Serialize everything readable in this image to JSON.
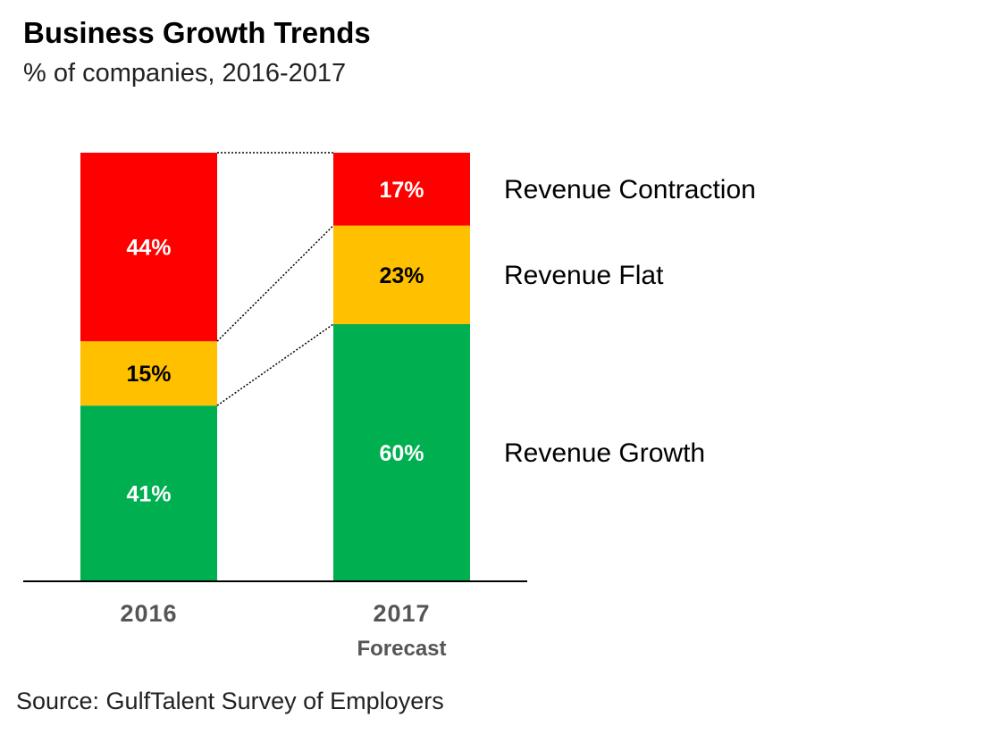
{
  "chart_data": {
    "type": "bar",
    "stacked": true,
    "title": "Business Growth Trends",
    "subtitle": "% of companies, 2016-2017",
    "categories": [
      "2016",
      "2017"
    ],
    "category_sublabels": [
      "",
      "Forecast"
    ],
    "series": [
      {
        "name": "Revenue Growth",
        "values": [
          41,
          60
        ],
        "color": "#00B050",
        "label_color": "#ffffff"
      },
      {
        "name": "Revenue Flat",
        "values": [
          15,
          23
        ],
        "color": "#FFC000",
        "label_color": "#000000"
      },
      {
        "name": "Revenue Contraction",
        "values": [
          44,
          17
        ],
        "color": "#FF0000",
        "label_color": "#ffffff"
      }
    ],
    "value_suffix": "%",
    "ylim": [
      0,
      100
    ],
    "grid": false,
    "legend_placement": "right",
    "source": "Source: GulfTalent Survey of Employers"
  }
}
